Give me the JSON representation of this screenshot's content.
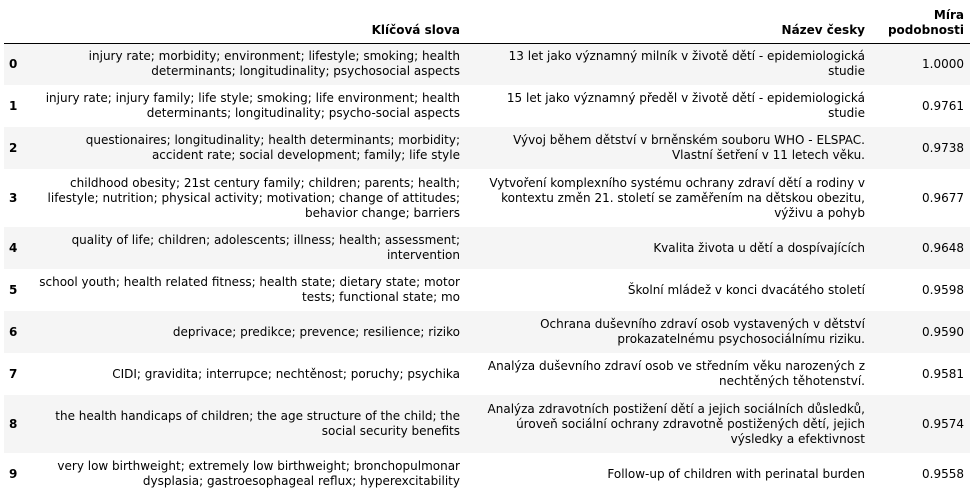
{
  "table": {
    "headers": {
      "index": "",
      "keywords": "Klíčová slova",
      "title": "Název česky",
      "similarity_line1": "Míra",
      "similarity_line2": "podobnosti"
    },
    "rows": [
      {
        "index": "0",
        "keywords": "injury rate; morbidity; environment; lifestyle; smoking; health determinants; longitudinality; psychosocial aspects",
        "title": "13 let jako významný milník v životě dětí - epidemiologická studie",
        "similarity": "1.0000"
      },
      {
        "index": "1",
        "keywords": "injury rate; injury family; life style; smoking; life environment; health determinants; longitudinality; psycho-social aspects",
        "title": "15 let jako významný předěl v životě dětí - epidemiologická studie",
        "similarity": "0.9761"
      },
      {
        "index": "2",
        "keywords": "questionaires; longitudinality; health determinants; morbidity; accident rate; social development; family; life style",
        "title": "Vývoj během dětství v brněnském souboru WHO - ELSPAC. Vlastní šetření v 11 letech věku.",
        "similarity": "0.9738"
      },
      {
        "index": "3",
        "keywords": "childhood obesity; 21st century family; children; parents; health; lifestyle; nutrition; physical activity; motivation; change of attitudes; behavior change; barriers",
        "title": "Vytvoření komplexního systému ochrany zdraví dětí a rodiny v kontextu změn 21. století se zaměřením na dětskou obezitu, výživu a pohyb",
        "similarity": "0.9677"
      },
      {
        "index": "4",
        "keywords": "quality of life; children; adolescents; illness; health; assessment; intervention",
        "title": "Kvalita života u dětí a dospívajících",
        "similarity": "0.9648"
      },
      {
        "index": "5",
        "keywords": "school youth; health related fitness; health state; dietary state; motor tests; functional state; mo",
        "title": "Školní mládež v konci dvacátého století",
        "similarity": "0.9598"
      },
      {
        "index": "6",
        "keywords": "deprivace; predikce; prevence; resilience; riziko",
        "title": "Ochrana duševního zdraví osob vystavených v dětství prokazatelnému psychosociálnímu riziku.",
        "similarity": "0.9590"
      },
      {
        "index": "7",
        "keywords": "CIDI; gravidita; interrupce; nechtěnost; poruchy; psychika",
        "title": "Analýza duševního zdraví osob ve středním věku narozených z nechtěných těhotenství.",
        "similarity": "0.9581"
      },
      {
        "index": "8",
        "keywords": "the health handicaps of children; the age structure of the child; the social security benefits",
        "title": "Analýza zdravotních postižení dětí a jejich sociálních důsledků, úroveň sociální ochrany zdravotně postižených dětí, jejich výsledky a efektivnost",
        "similarity": "0.9574"
      },
      {
        "index": "9",
        "keywords": "very low birthweight; extremely low birthweight; bronchopulmonar dysplasia; gastroesophageal reflux; hyperexcitability",
        "title": "Follow-up of children with perinatal burden",
        "similarity": "0.9558"
      }
    ]
  }
}
